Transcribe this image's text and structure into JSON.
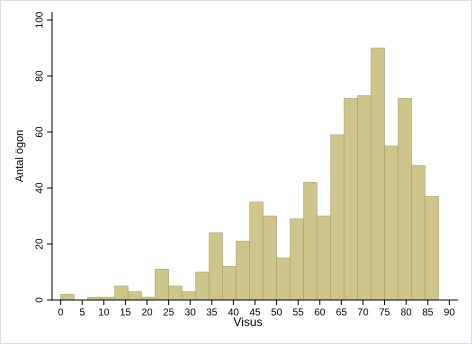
{
  "chart_data": {
    "type": "histogram",
    "x_label": "Visus",
    "y_label": "Antal ögon",
    "bins": [
      0,
      3.125,
      6.25,
      9.375,
      12.5,
      15.625,
      18.75,
      21.875,
      25,
      28.125,
      31.25,
      34.375,
      37.5,
      40.625,
      43.75,
      46.875,
      50,
      53.125,
      56.25,
      59.375,
      62.5,
      65.625,
      68.75,
      71.875,
      75,
      78.125,
      81.25,
      84.375,
      87.5
    ],
    "values": [
      2,
      0,
      1,
      1,
      5,
      3,
      1,
      11,
      5,
      3,
      10,
      24,
      12,
      21,
      35,
      30,
      15,
      29,
      42,
      30,
      59,
      72,
      73,
      90,
      55,
      72,
      48,
      37
    ],
    "color": "#cdc58b",
    "xlim": [
      -2,
      92
    ],
    "xticks": [
      0,
      5,
      10,
      15,
      20,
      25,
      30,
      35,
      40,
      45,
      50,
      55,
      60,
      65,
      70,
      75,
      80,
      85,
      90
    ],
    "ylim": [
      0,
      100
    ],
    "yticks": [
      0,
      20,
      40,
      60,
      80,
      100
    ]
  }
}
